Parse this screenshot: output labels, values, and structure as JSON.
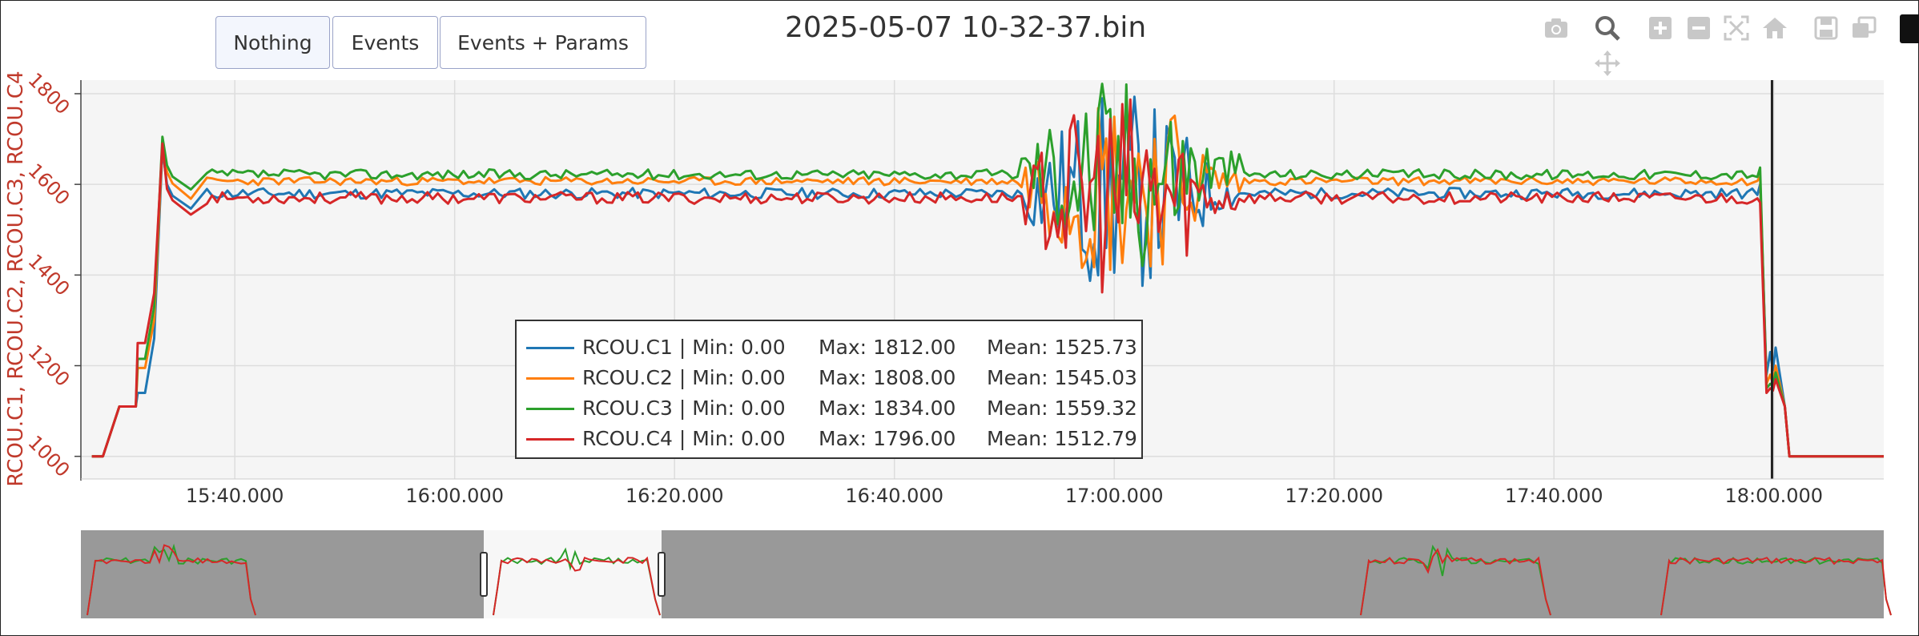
{
  "toolbar": {
    "buttons": [
      {
        "label": "Nothing",
        "active": true
      },
      {
        "label": "Events",
        "active": false
      },
      {
        "label": "Events + Params",
        "active": false
      }
    ],
    "icons": [
      "camera-icon",
      "zoom-icon",
      "pan-icon",
      "zoom-in-icon",
      "zoom-out-icon",
      "autoscale-icon",
      "reset-axes-icon",
      "save-icon",
      "compare-icon"
    ]
  },
  "chart_data": {
    "type": "line",
    "title": "2025-05-07 10-32-37.bin",
    "ylabel": "RCOU.C1, RCOU.C2, RCOU.C3, RCOU.C4",
    "xlabel": "",
    "ylim": [
      950,
      1830
    ],
    "xlim": [
      "15:26:00",
      "18:10:00"
    ],
    "yticks": [
      1000,
      1200,
      1400,
      1600,
      1800
    ],
    "xticks": [
      "15:40.000",
      "16:00.000",
      "16:20.000",
      "16:40.000",
      "17:00.000",
      "17:20.000",
      "17:40.000",
      "18:00.000"
    ],
    "grid": true,
    "legend_position": "center",
    "cursor_time": "17:59:50",
    "series": [
      {
        "name": "RCOU.C1",
        "color": "#1f77b4",
        "min": "0.00",
        "max": "1812.00",
        "mean": "1525.73",
        "base": 1580,
        "noise": 12,
        "seed": 11
      },
      {
        "name": "RCOU.C2",
        "color": "#ff7f0e",
        "min": "0.00",
        "max": "1808.00",
        "mean": "1545.03",
        "base": 1607,
        "noise": 9,
        "seed": 23
      },
      {
        "name": "RCOU.C3",
        "color": "#2ca02c",
        "min": "0.00",
        "max": "1834.00",
        "mean": "1559.32",
        "base": 1622,
        "noise": 11,
        "seed": 37
      },
      {
        "name": "RCOU.C4",
        "color": "#d62728",
        "min": "0.00",
        "max": "1796.00",
        "mean": "1512.79",
        "base": 1570,
        "noise": 13,
        "seed": 53
      }
    ],
    "legend_labels": {
      "min": "Min:",
      "max": "Max:",
      "mean": "Mean:"
    },
    "rangeslider": {
      "selected_window": [
        "15:59:30",
        "16:16:30"
      ]
    }
  }
}
